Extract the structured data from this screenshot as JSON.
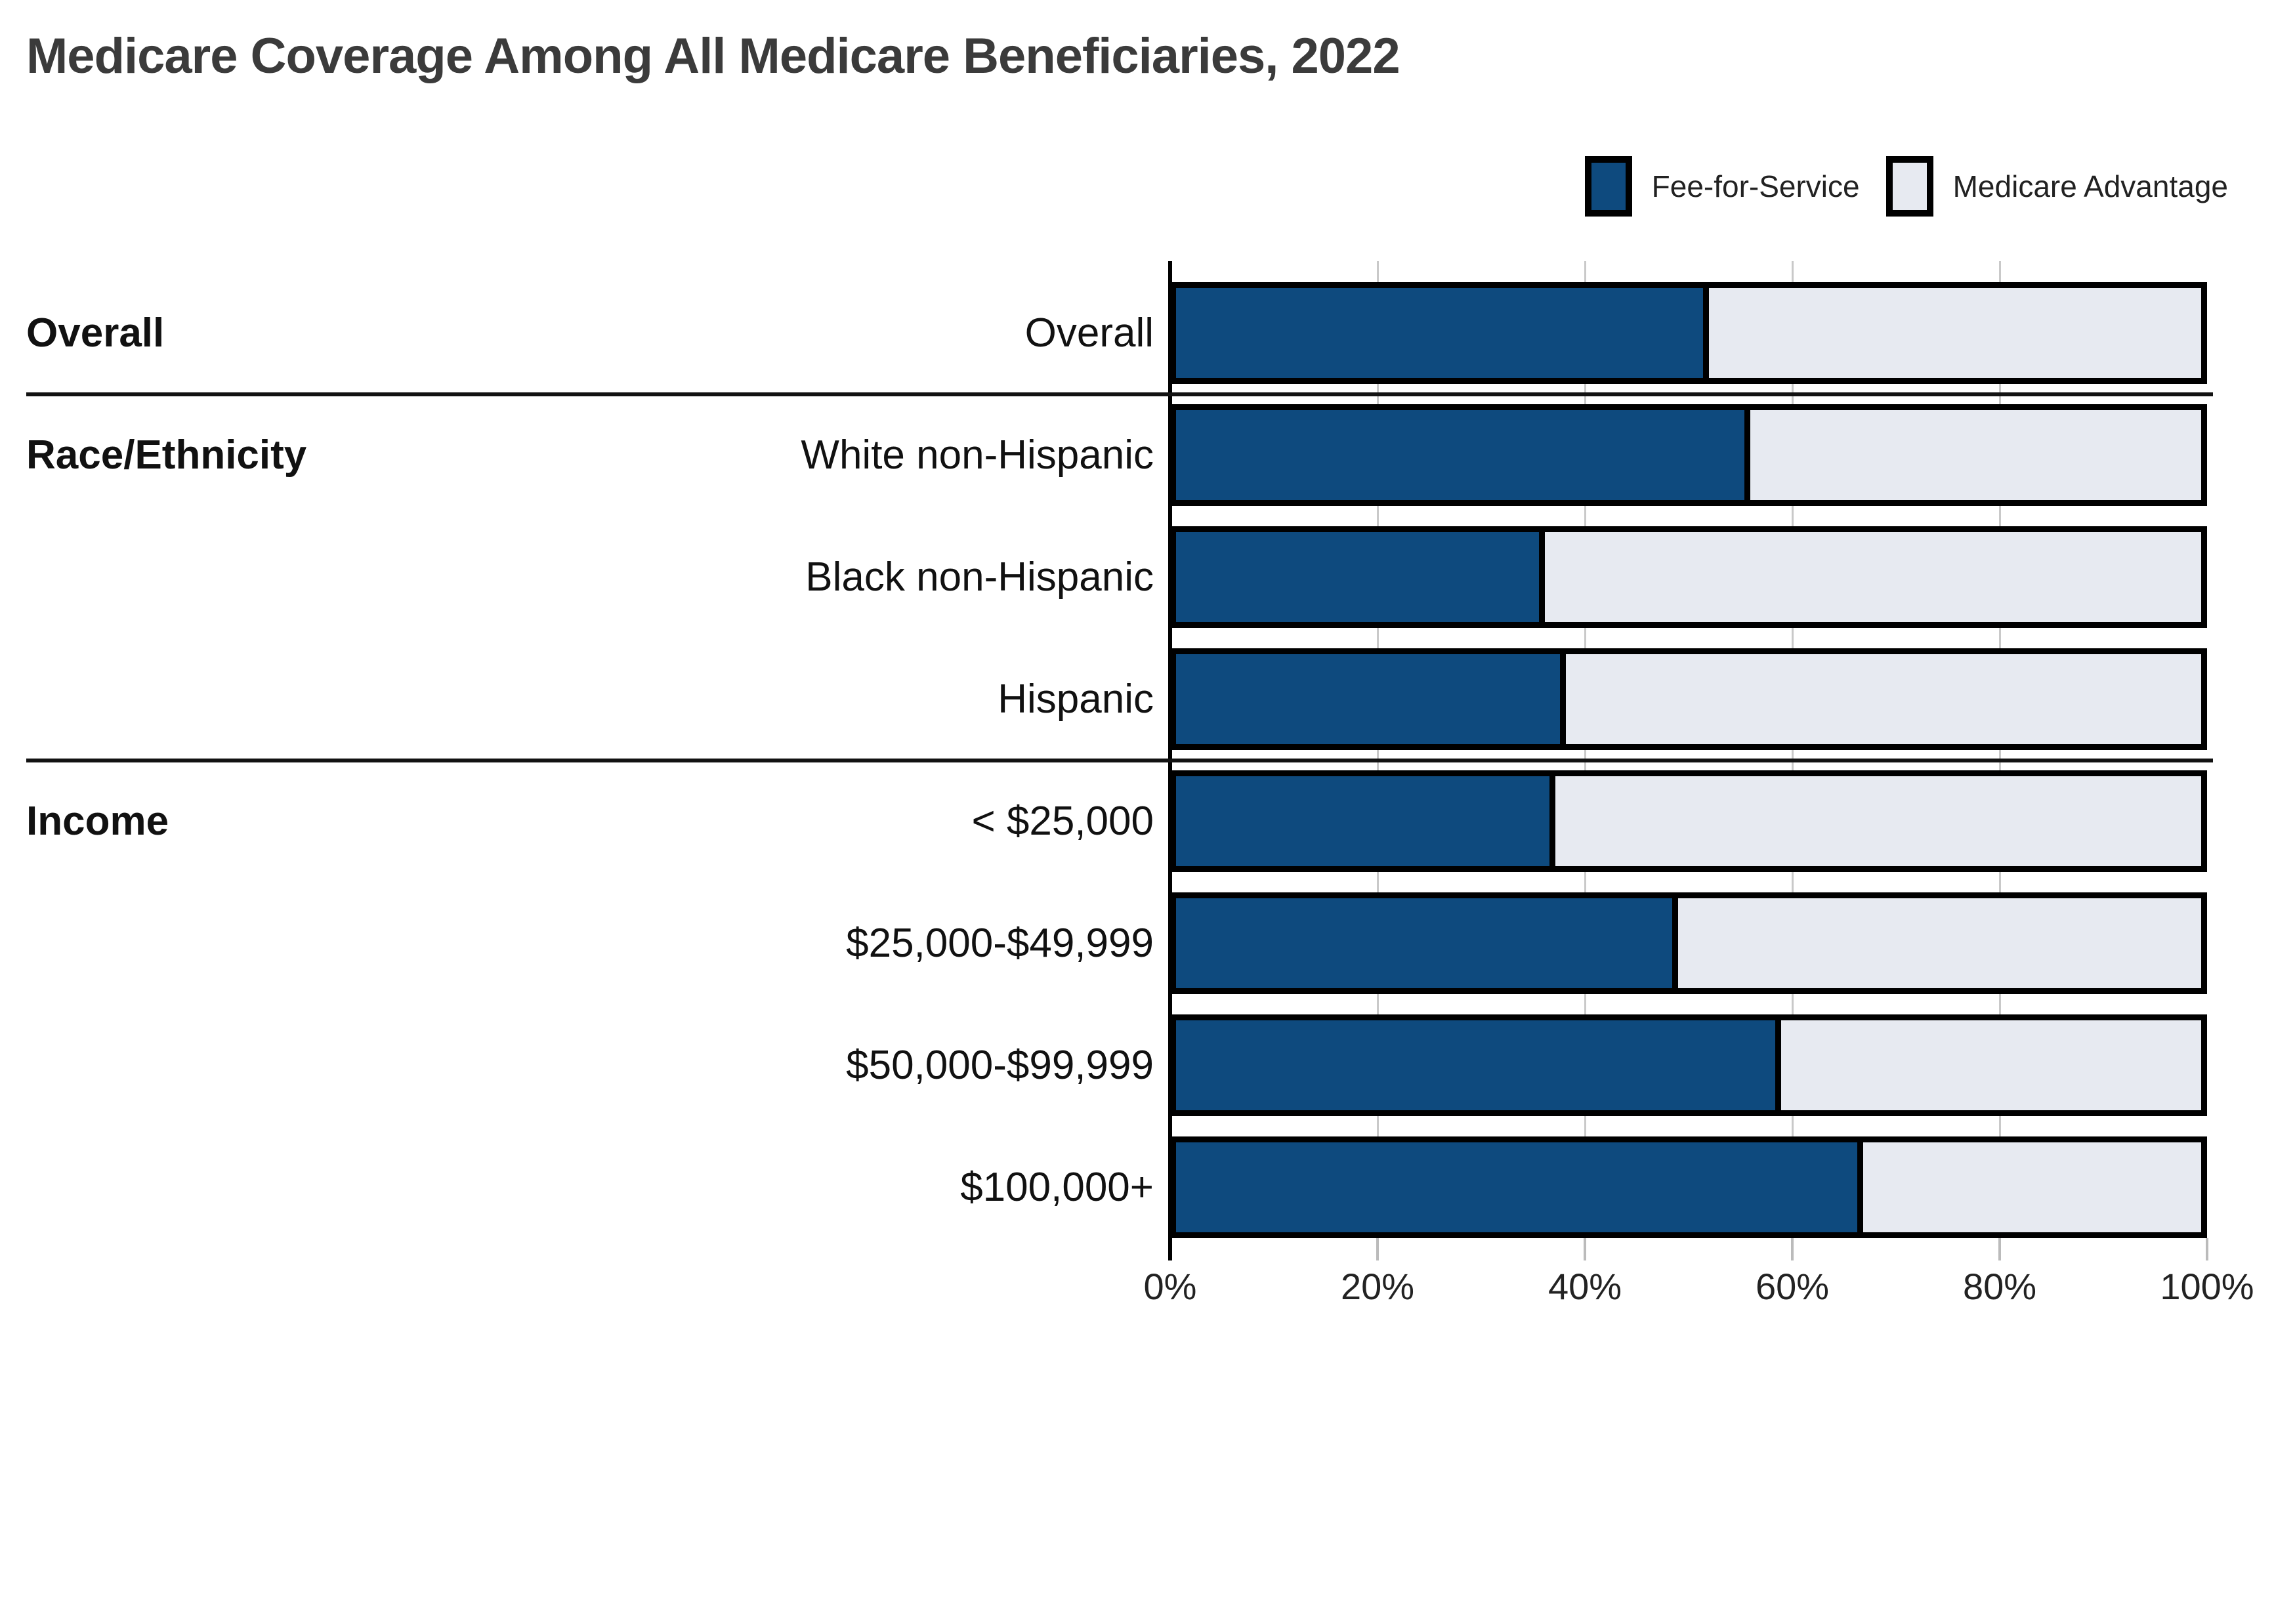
{
  "title": "Medicare Coverage Among All Medicare Beneficiaries, 2022",
  "legend": {
    "items": [
      {
        "label": "Fee-for-Service",
        "color": "#0E4A7E"
      },
      {
        "label": "Medicare Advantage",
        "color": "#E7EAF1"
      }
    ]
  },
  "colors": {
    "fee_for_service": "#0E4A7E",
    "medicare_advantage": "#E7EAF1",
    "bar_border": "#000000",
    "gridline": "#C9C9C9",
    "divider": "#121212",
    "title_text": "#3B3B3B"
  },
  "chart_data": {
    "type": "bar",
    "orientation": "horizontal",
    "stacked": true,
    "title": "Medicare Coverage Among All Medicare Beneficiaries, 2022",
    "unit": "%",
    "categories": [
      "Overall",
      "White non-Hispanic",
      "Black non-Hispanic",
      "Hispanic",
      "< $25,000",
      "$25,000-$49,999",
      "$50,000-$99,999",
      "$100,000+"
    ],
    "sections": [
      {
        "label": "Overall",
        "start": 0,
        "count": 1
      },
      {
        "label": "Race/Ethnicity",
        "start": 1,
        "count": 3
      },
      {
        "label": "Income",
        "start": 4,
        "count": 4
      }
    ],
    "series": [
      {
        "name": "Fee-for-Service",
        "color": "#0E4A7E",
        "values": [
          52,
          56,
          36,
          38,
          37,
          49,
          59,
          67
        ]
      },
      {
        "name": "Medicare Advantage",
        "color": "#E7EAF1",
        "values": [
          48,
          44,
          64,
          62,
          63,
          51,
          41,
          33
        ]
      }
    ],
    "xlim": [
      0,
      100
    ],
    "xticks": [
      {
        "value": 0,
        "label": "0%"
      },
      {
        "value": 20,
        "label": "20%"
      },
      {
        "value": 40,
        "label": "40%"
      },
      {
        "value": 60,
        "label": "60%"
      },
      {
        "value": 80,
        "label": "80%"
      },
      {
        "value": 100,
        "label": "100%"
      }
    ],
    "grid": true,
    "legend_position": "top-right"
  }
}
